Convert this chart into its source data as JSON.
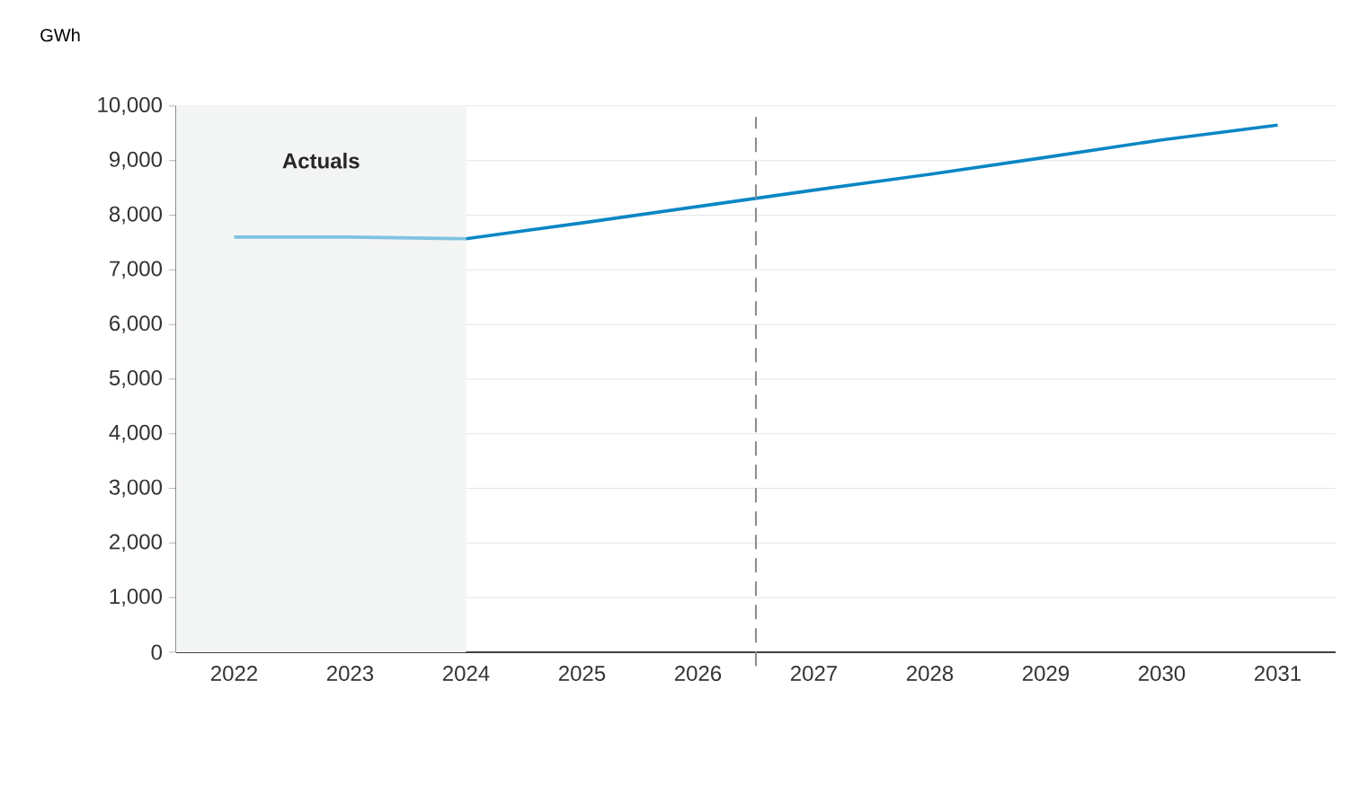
{
  "chart_data": {
    "type": "line",
    "ylabel": "GWh",
    "xlim": [
      2021.5,
      2031.5
    ],
    "xticks": [
      2022,
      2023,
      2024,
      2025,
      2026,
      2027,
      2028,
      2029,
      2030,
      2031
    ],
    "ylim": [
      0,
      10000
    ],
    "yticks": [
      {
        "value": 0,
        "label": "0"
      },
      {
        "value": 1000,
        "label": "1,000"
      },
      {
        "value": 2000,
        "label": "2,000"
      },
      {
        "value": 3000,
        "label": "3,000"
      },
      {
        "value": 4000,
        "label": "4,000"
      },
      {
        "value": 5000,
        "label": "5,000"
      },
      {
        "value": 6000,
        "label": "6,000"
      },
      {
        "value": 7000,
        "label": "7,000"
      },
      {
        "value": 8000,
        "label": "8,000"
      },
      {
        "value": 9000,
        "label": "9,000"
      },
      {
        "value": 10000,
        "label": "10,000"
      }
    ],
    "grid": "y",
    "marker": "none",
    "series": [
      {
        "color": "#7fc1e1",
        "x": [
          2022,
          2023,
          2024
        ],
        "values": [
          7600,
          7600,
          7570
        ]
      },
      {
        "color": "#0a86c4",
        "x": [
          2024,
          2025,
          2026,
          2027,
          2028,
          2029,
          2030,
          2031
        ],
        "values": [
          7570,
          7860,
          8160,
          8460,
          8750,
          9060,
          9380,
          9650
        ]
      }
    ],
    "bands": [
      {
        "axis": "x",
        "from": 2021.5,
        "to": 2024,
        "label": "Actuals",
        "color": "#f3f4f4"
      }
    ],
    "ref_lines": [
      {
        "axis": "x",
        "value": 2026.5,
        "color": "#8c8c8c",
        "line_style": "dashed"
      }
    ]
  }
}
